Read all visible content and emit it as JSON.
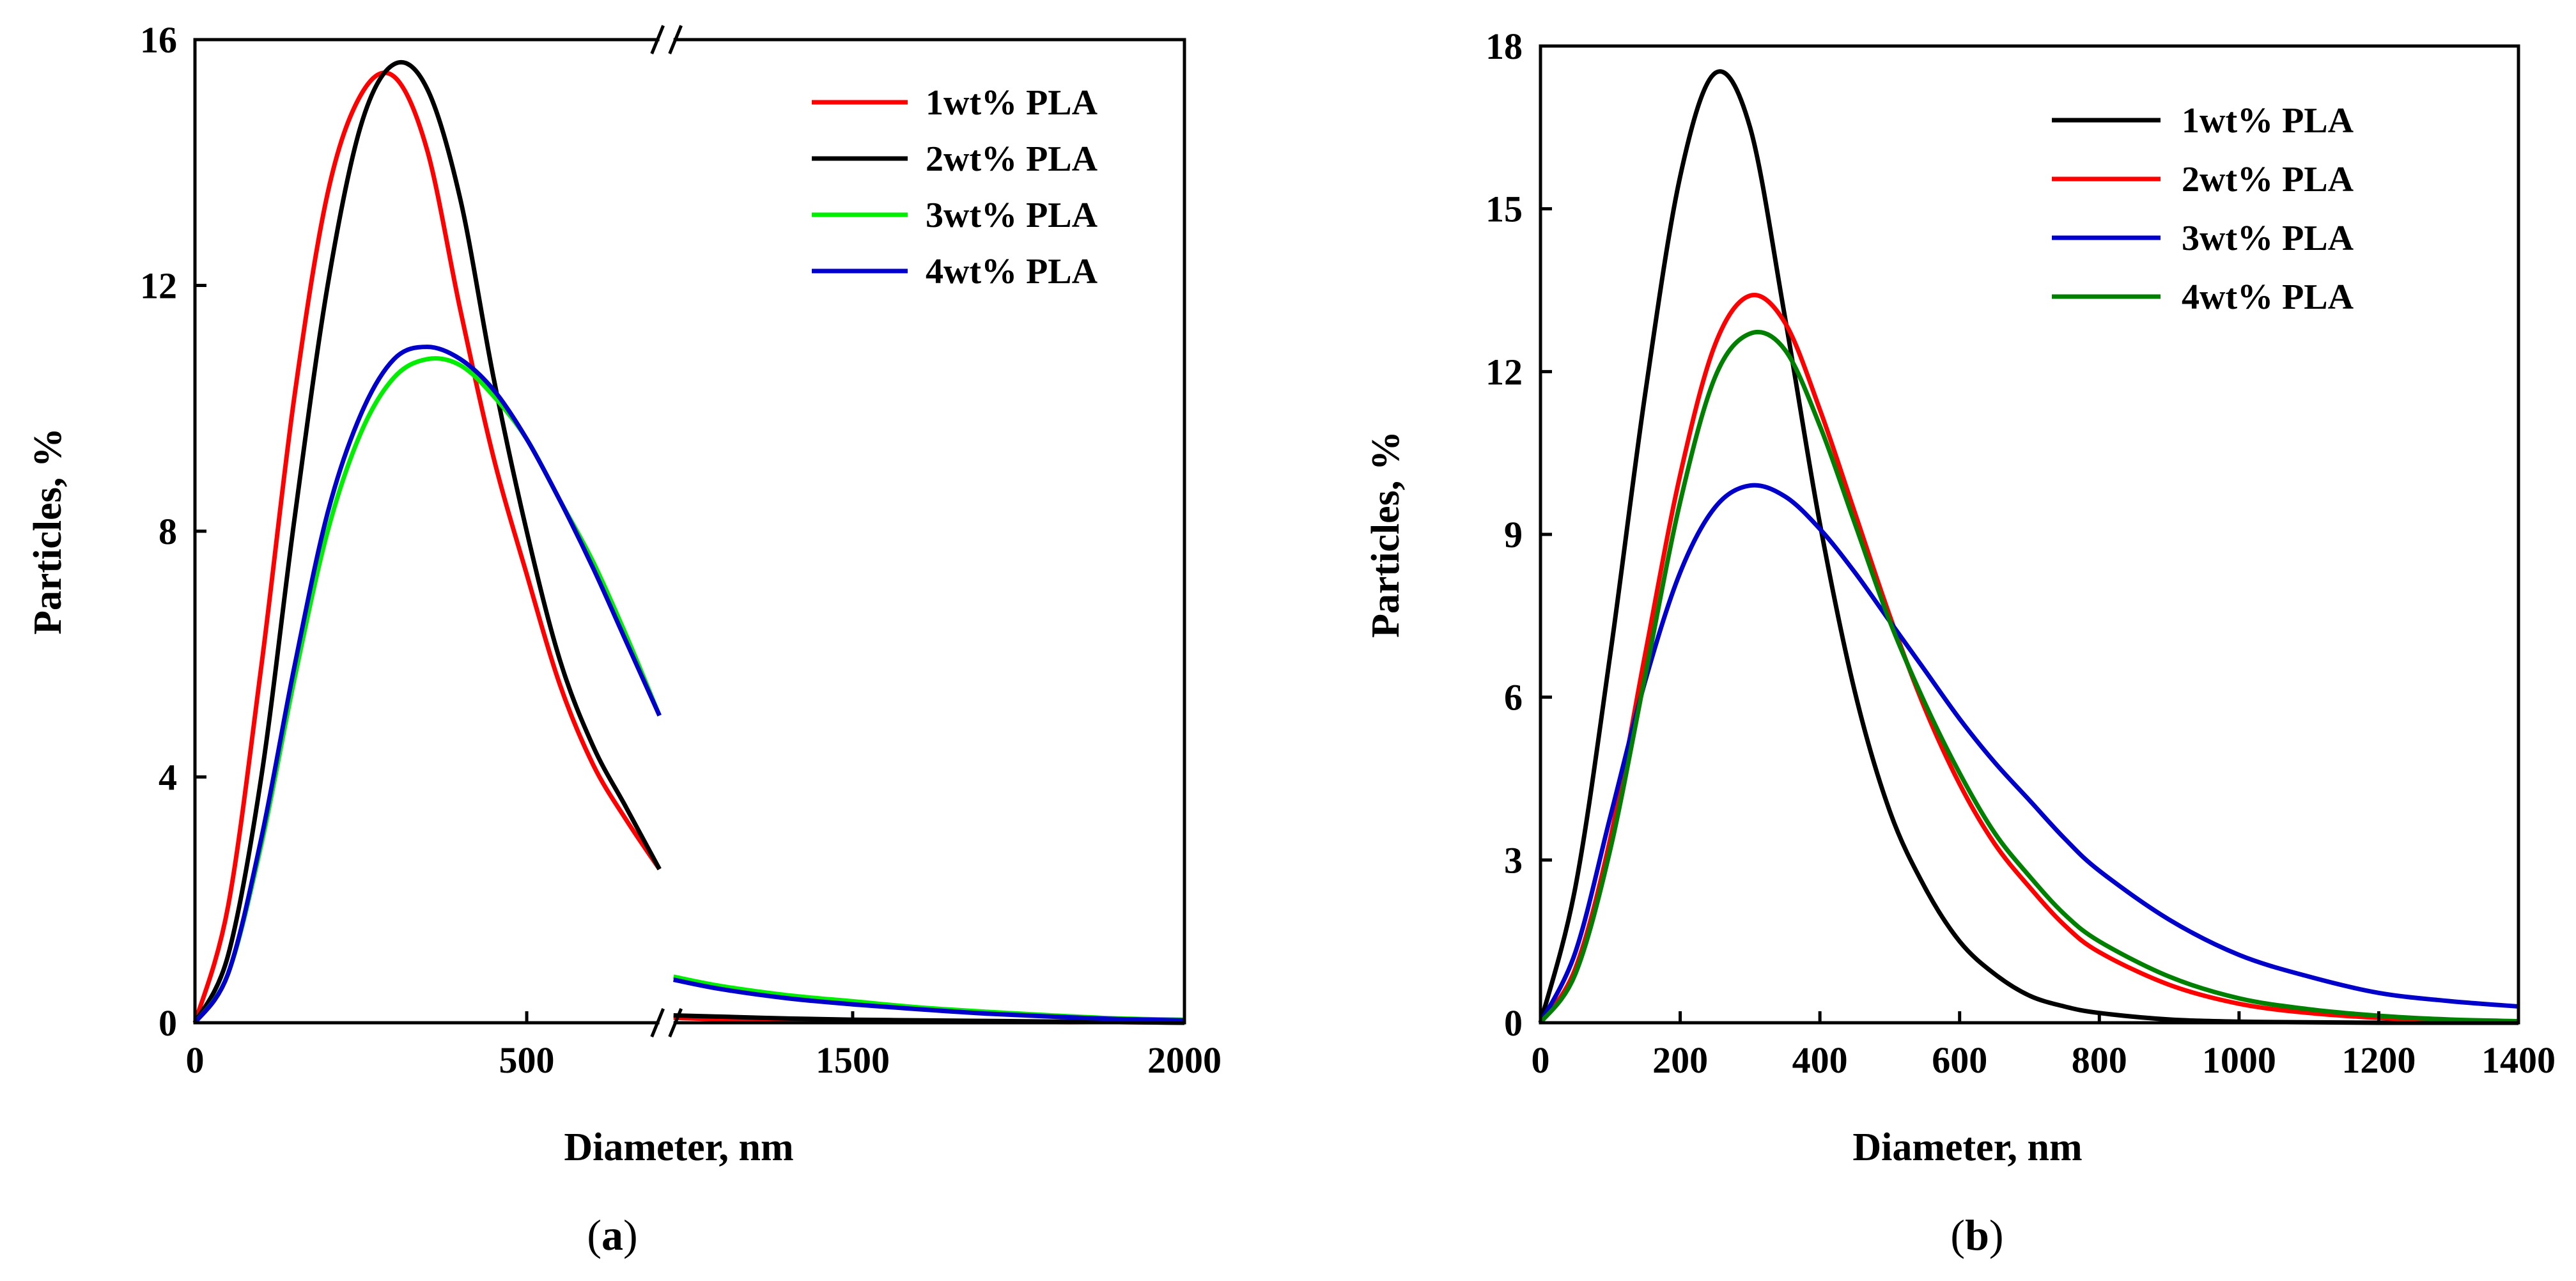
{
  "chart_data": [
    {
      "type": "line",
      "panel": "a",
      "caption_open": "(",
      "caption_letter": "a",
      "caption_close": ")",
      "xlabel": "Diameter, nm",
      "ylabel": "Particles, %",
      "xlim": [
        0,
        2000
      ],
      "ylim": [
        0,
        16
      ],
      "break": {
        "from": 700,
        "to": 1230
      },
      "x_ticks": [
        {
          "value": 0,
          "label": "0"
        },
        {
          "value": 500,
          "label": "500"
        },
        {
          "value": 1500,
          "label": "1500"
        },
        {
          "value": 2000,
          "label": "2000"
        }
      ],
      "y_ticks": [
        {
          "value": 0,
          "label": "0"
        },
        {
          "value": 4,
          "label": "4"
        },
        {
          "value": 8,
          "label": "8"
        },
        {
          "value": 12,
          "label": "12"
        },
        {
          "value": 16,
          "label": "16"
        }
      ],
      "legend_position": "top-right",
      "series": [
        {
          "name": "1wt% PLA",
          "color": "#ff0000",
          "x": [
            0,
            50,
            100,
            150,
            200,
            250,
            300,
            350,
            400,
            450,
            500,
            550,
            600,
            650,
            700,
            1230,
            1300,
            1400,
            1500,
            1600,
            1700,
            1800,
            1900,
            2000
          ],
          "y": [
            0,
            1.9,
            5.8,
            10.2,
            13.5,
            15.1,
            15.4,
            14.2,
            11.6,
            9.2,
            7.3,
            5.5,
            4.2,
            3.3,
            2.5,
            0.08,
            0.06,
            0.05,
            0.04,
            0.03,
            0.02,
            0.01,
            0.01,
            0
          ]
        },
        {
          "name": "2wt% PLA",
          "color": "#000000",
          "x": [
            0,
            50,
            100,
            150,
            200,
            250,
            300,
            350,
            400,
            450,
            500,
            550,
            600,
            650,
            700,
            1230,
            1300,
            1400,
            1500,
            1600,
            1700,
            1800,
            1900,
            2000
          ],
          "y": [
            0,
            1.1,
            4.0,
            8.2,
            12.0,
            14.6,
            15.6,
            15.2,
            13.4,
            10.5,
            8.0,
            5.9,
            4.5,
            3.5,
            2.5,
            0.12,
            0.1,
            0.07,
            0.05,
            0.04,
            0.03,
            0.02,
            0.01,
            0
          ]
        },
        {
          "name": "3wt% PLA",
          "color": "#00ee00",
          "x": [
            0,
            50,
            100,
            150,
            200,
            250,
            300,
            350,
            400,
            450,
            500,
            550,
            600,
            650,
            700,
            1230,
            1300,
            1400,
            1500,
            1600,
            1700,
            1800,
            1900,
            2000
          ],
          "y": [
            0,
            0.8,
            2.9,
            5.6,
            8.0,
            9.6,
            10.5,
            10.8,
            10.7,
            10.2,
            9.5,
            8.5,
            7.5,
            6.3,
            5.0,
            0.75,
            0.6,
            0.45,
            0.35,
            0.25,
            0.18,
            0.12,
            0.07,
            0.05
          ]
        },
        {
          "name": "4wt% PLA",
          "color": "#0000cc",
          "x": [
            0,
            50,
            100,
            150,
            200,
            250,
            300,
            350,
            400,
            450,
            500,
            550,
            600,
            650,
            700,
            1230,
            1300,
            1400,
            1500,
            1600,
            1700,
            1800,
            1900,
            2000
          ],
          "y": [
            0,
            0.8,
            3.0,
            5.8,
            8.3,
            9.9,
            10.8,
            11.0,
            10.8,
            10.3,
            9.5,
            8.5,
            7.4,
            6.2,
            5.0,
            0.7,
            0.55,
            0.4,
            0.3,
            0.22,
            0.15,
            0.1,
            0.06,
            0.04
          ]
        }
      ]
    },
    {
      "type": "line",
      "panel": "b",
      "caption_open": "(",
      "caption_letter": "b",
      "caption_close": ")",
      "xlabel": "Diameter, nm",
      "ylabel": "Particles, %",
      "xlim": [
        0,
        1400
      ],
      "ylim": [
        0,
        18
      ],
      "x_ticks": [
        {
          "value": 0,
          "label": "0"
        },
        {
          "value": 200,
          "label": "200"
        },
        {
          "value": 400,
          "label": "400"
        },
        {
          "value": 600,
          "label": "600"
        },
        {
          "value": 800,
          "label": "800"
        },
        {
          "value": 1000,
          "label": "1000"
        },
        {
          "value": 1200,
          "label": "1200"
        },
        {
          "value": 1400,
          "label": "1400"
        }
      ],
      "y_ticks": [
        {
          "value": 0,
          "label": "0"
        },
        {
          "value": 3,
          "label": "3"
        },
        {
          "value": 6,
          "label": "6"
        },
        {
          "value": 9,
          "label": "9"
        },
        {
          "value": 12,
          "label": "12"
        },
        {
          "value": 15,
          "label": "15"
        },
        {
          "value": 18,
          "label": "18"
        }
      ],
      "legend_position": "top-right",
      "series": [
        {
          "name": "1wt% PLA",
          "color": "#000000",
          "x": [
            0,
            50,
            100,
            150,
            200,
            250,
            300,
            350,
            400,
            450,
            500,
            550,
            600,
            650,
            700,
            750,
            800,
            900,
            1000,
            1100,
            1200,
            1300,
            1400
          ],
          "y": [
            0,
            2.5,
            6.8,
            11.6,
            15.6,
            17.5,
            16.5,
            13.0,
            9.2,
            6.1,
            3.9,
            2.5,
            1.5,
            0.9,
            0.5,
            0.3,
            0.18,
            0.06,
            0.02,
            0.01,
            0,
            0,
            0
          ]
        },
        {
          "name": "2wt% PLA",
          "color": "#ff0000",
          "x": [
            0,
            50,
            100,
            150,
            200,
            250,
            300,
            350,
            400,
            450,
            500,
            550,
            600,
            650,
            700,
            750,
            800,
            900,
            1000,
            1100,
            1200,
            1300,
            1400
          ],
          "y": [
            0,
            1.0,
            3.4,
            6.8,
            10.1,
            12.5,
            13.4,
            12.9,
            11.3,
            9.4,
            7.5,
            5.8,
            4.4,
            3.3,
            2.5,
            1.8,
            1.3,
            0.7,
            0.35,
            0.18,
            0.09,
            0.04,
            0.02
          ]
        },
        {
          "name": "3wt% PLA",
          "color": "#0000cc",
          "x": [
            0,
            50,
            100,
            150,
            200,
            250,
            300,
            350,
            400,
            450,
            500,
            550,
            600,
            650,
            700,
            750,
            800,
            900,
            1000,
            1100,
            1200,
            1300,
            1400
          ],
          "y": [
            0,
            1.3,
            3.8,
            6.3,
            8.3,
            9.5,
            9.9,
            9.7,
            9.1,
            8.3,
            7.4,
            6.5,
            5.6,
            4.8,
            4.1,
            3.4,
            2.8,
            1.9,
            1.25,
            0.85,
            0.55,
            0.4,
            0.3
          ]
        },
        {
          "name": "4wt% PLA",
          "color": "#008000",
          "x": [
            0,
            50,
            100,
            150,
            200,
            250,
            300,
            350,
            400,
            450,
            500,
            550,
            600,
            650,
            700,
            750,
            800,
            900,
            1000,
            1100,
            1200,
            1300,
            1400
          ],
          "y": [
            0,
            0.9,
            3.2,
            6.4,
            9.6,
            11.9,
            12.7,
            12.4,
            11.0,
            9.2,
            7.4,
            5.9,
            4.6,
            3.5,
            2.7,
            2.0,
            1.5,
            0.85,
            0.45,
            0.25,
            0.13,
            0.06,
            0.03
          ]
        }
      ]
    }
  ]
}
